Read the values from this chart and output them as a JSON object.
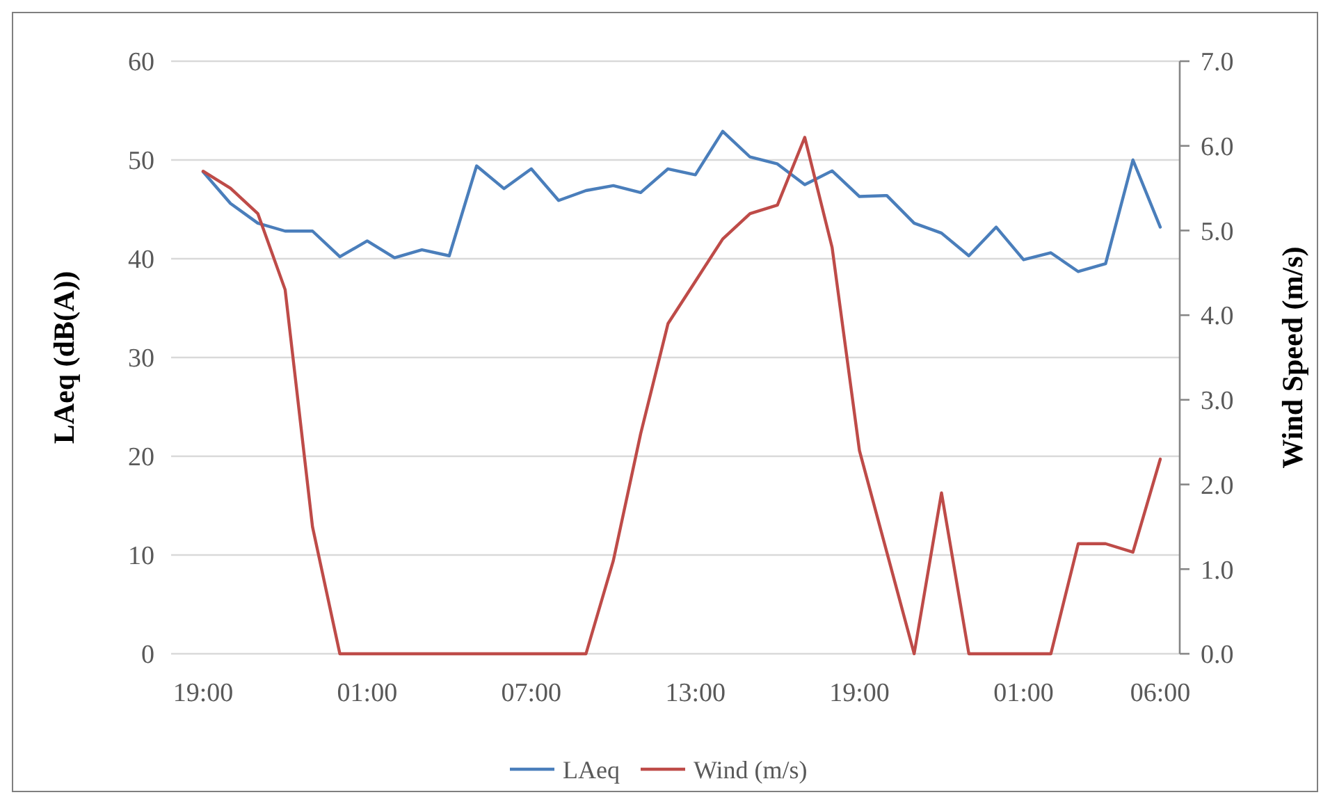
{
  "chart_data": {
    "type": "line",
    "xlabel": null,
    "ylabel": "LAeq (dB(A))",
    "y2label": "Wind Speed (m/s)",
    "categories": [
      "19:00",
      null,
      null,
      null,
      null,
      null,
      "01:00",
      null,
      null,
      null,
      null,
      null,
      "07:00",
      null,
      null,
      null,
      null,
      null,
      "13:00",
      null,
      null,
      null,
      null,
      null,
      "19:00",
      null,
      null,
      null,
      null,
      null,
      "01:00",
      null,
      null,
      null,
      null,
      "06:00"
    ],
    "series": [
      {
        "name": "LAeq",
        "color": "#4a7ebb",
        "values": [
          48.8,
          45.6,
          43.6,
          42.8,
          42.8,
          40.2,
          41.8,
          40.1,
          40.9,
          40.3,
          49.4,
          47.1,
          49.1,
          45.9,
          46.9,
          47.4,
          46.7,
          49.1,
          48.5,
          52.9,
          50.3,
          49.6,
          47.5,
          48.9,
          46.3,
          46.4,
          43.6,
          42.6,
          40.3,
          43.2,
          39.9,
          40.6,
          38.7,
          39.5,
          50.0,
          43.2
        ]
      },
      {
        "name": "Wind (m/s)",
        "color": "#be4b48",
        "axis": "y2",
        "values": [
          5.7,
          5.5,
          5.2,
          4.3,
          1.5,
          0,
          0,
          0,
          0,
          0,
          0,
          0,
          0,
          0,
          0,
          1.1,
          2.6,
          3.9,
          4.4,
          4.9,
          5.2,
          5.3,
          6.1,
          4.8,
          2.4,
          1.2,
          0,
          1.9,
          0,
          0,
          0,
          0,
          1.3,
          1.3,
          1.2,
          2.3
        ]
      }
    ],
    "ylim": [
      0,
      60
    ],
    "yticks": [
      0,
      10,
      20,
      30,
      40,
      50,
      60
    ],
    "y2lim": [
      0,
      7
    ],
    "y2ticks": [
      {
        "value": 0,
        "label": "0.0"
      },
      {
        "value": 1,
        "label": "1.0"
      },
      {
        "value": 2,
        "label": "2.0"
      },
      {
        "value": 3,
        "label": "3.0"
      },
      {
        "value": 4,
        "label": "4.0"
      },
      {
        "value": 5,
        "label": "5.0"
      },
      {
        "value": 6,
        "label": "6.0"
      },
      {
        "value": 7,
        "label": "7.0"
      }
    ],
    "grid": "y",
    "legend": "bottom",
    "marker": "none",
    "line_style": "solid"
  }
}
